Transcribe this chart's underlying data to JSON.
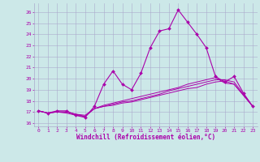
{
  "xlabel": "Windchill (Refroidissement éolien,°C)",
  "background_color": "#cce8e8",
  "line_color": "#aa00aa",
  "xlim": [
    -0.5,
    23.5
  ],
  "ylim": [
    15.7,
    26.8
  ],
  "yticks": [
    16,
    17,
    18,
    19,
    20,
    21,
    22,
    23,
    24,
    25,
    26
  ],
  "xticks": [
    0,
    1,
    2,
    3,
    4,
    5,
    6,
    7,
    8,
    9,
    10,
    11,
    12,
    13,
    14,
    15,
    16,
    17,
    18,
    19,
    20,
    21,
    22,
    23
  ],
  "grid_color": "#aaaacc",
  "lines": [
    [
      17.1,
      16.9,
      17.1,
      17.1,
      16.7,
      16.5,
      17.5,
      19.5,
      20.7,
      19.5,
      19.0,
      20.5,
      22.8,
      24.3,
      24.5,
      26.2,
      25.1,
      24.0,
      22.8,
      20.2,
      19.7,
      20.2,
      18.7,
      17.5
    ],
    [
      17.1,
      16.9,
      17.0,
      16.9,
      16.7,
      16.6,
      17.3,
      17.5,
      17.6,
      17.8,
      17.9,
      18.1,
      18.3,
      18.5,
      18.7,
      18.9,
      19.1,
      19.2,
      19.5,
      19.7,
      19.8,
      19.5,
      18.5,
      17.5
    ],
    [
      17.1,
      16.9,
      17.0,
      17.0,
      16.8,
      16.7,
      17.3,
      17.6,
      17.8,
      18.0,
      18.2,
      18.4,
      18.6,
      18.8,
      19.0,
      19.2,
      19.5,
      19.7,
      19.9,
      20.1,
      19.6,
      19.5,
      18.5,
      17.5
    ],
    [
      17.1,
      16.9,
      17.0,
      17.0,
      16.8,
      16.6,
      17.3,
      17.5,
      17.7,
      17.9,
      18.0,
      18.2,
      18.4,
      18.6,
      18.9,
      19.1,
      19.3,
      19.5,
      19.7,
      19.9,
      19.9,
      19.7,
      18.6,
      17.5
    ]
  ]
}
